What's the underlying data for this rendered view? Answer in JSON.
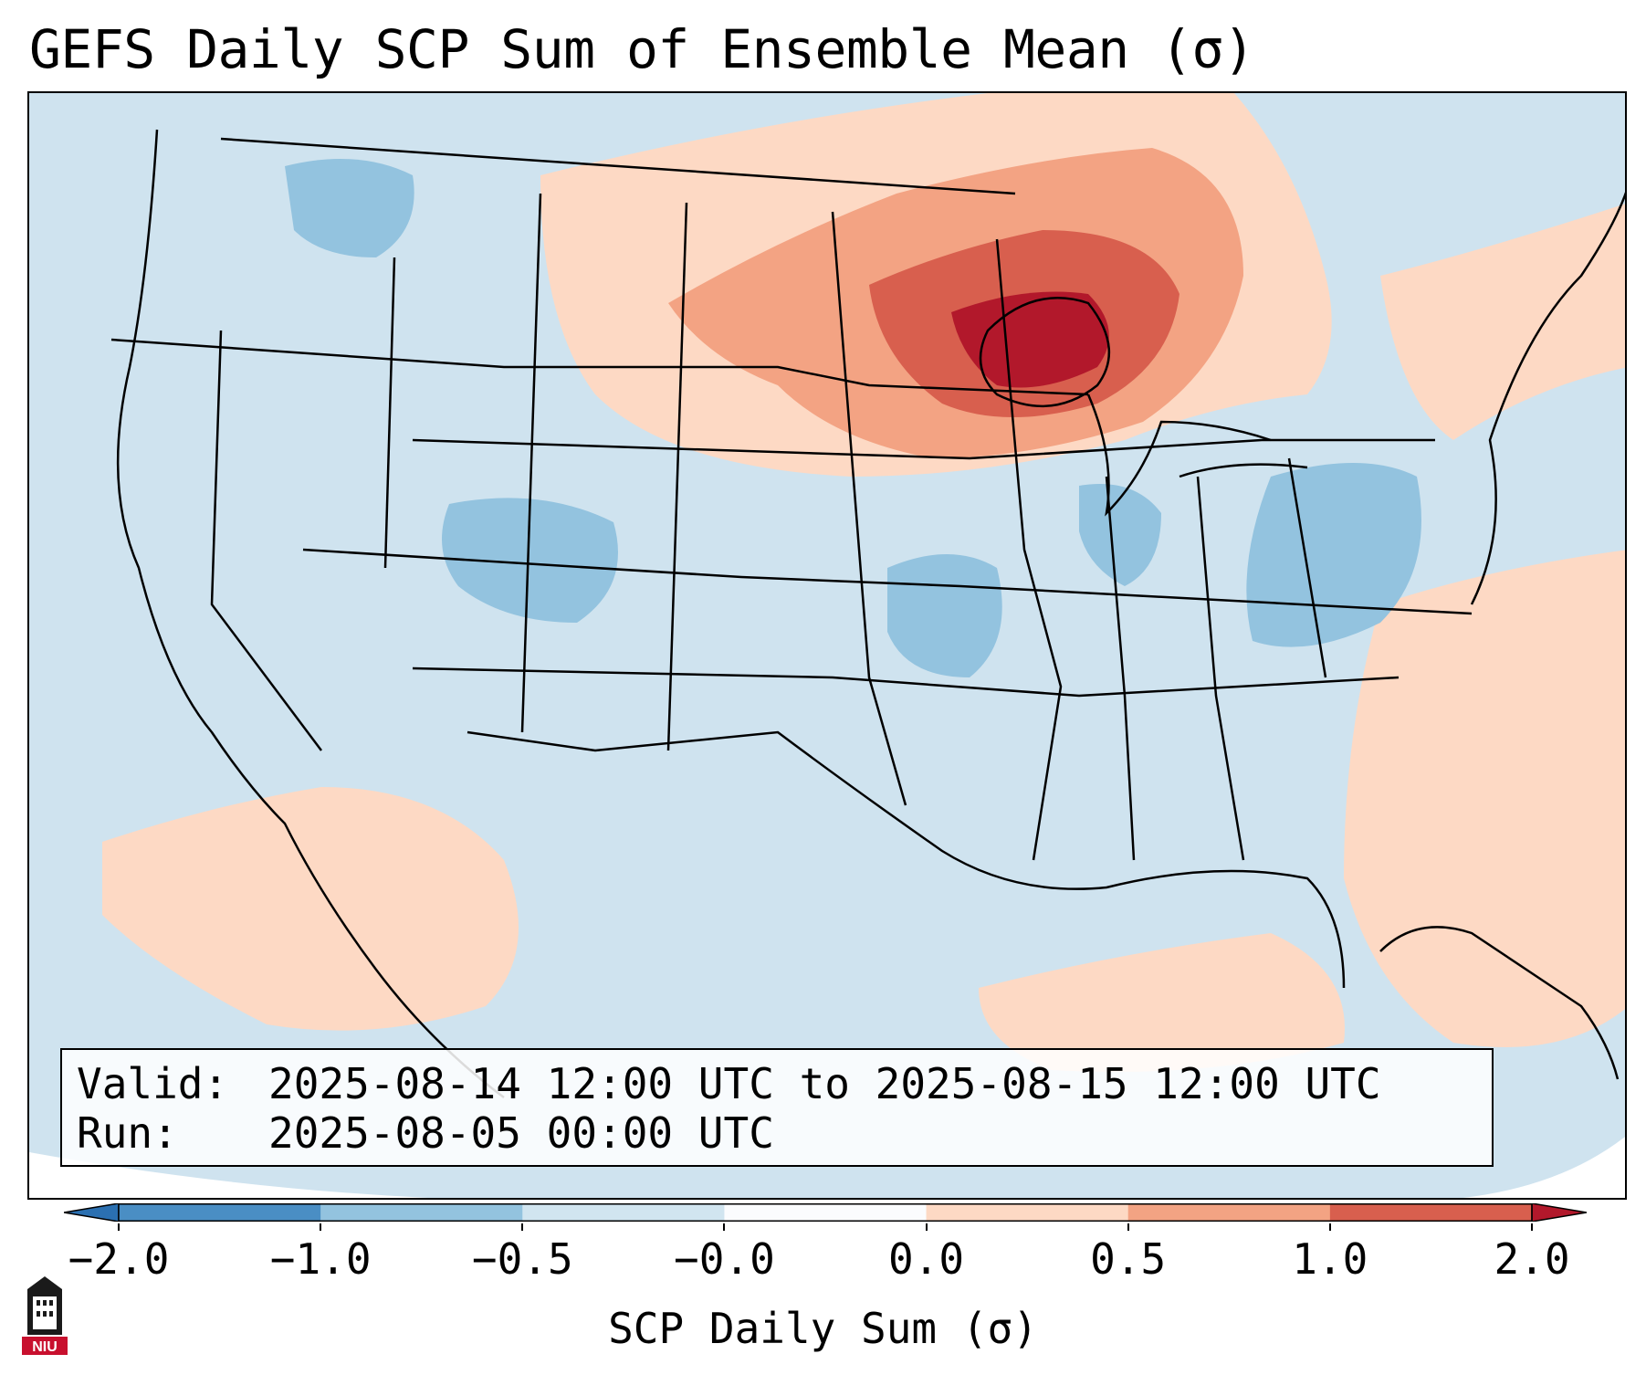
{
  "title": "GEFS Daily SCP Sum of Ensemble Mean (σ)",
  "infobox": {
    "valid_label": "Valid:",
    "valid_value": "2025-08-14 12:00 UTC to 2025-08-15 12:00 UTC",
    "run_label": "Run:",
    "run_value": "2025-08-05 00:00 UTC"
  },
  "colorbar": {
    "label": "SCP Daily Sum (σ)",
    "ticks": [
      "−2.0",
      "−1.0",
      "−0.5",
      "−0.0",
      "0.0",
      "0.5",
      "1.0",
      "2.0"
    ],
    "colors": [
      "#4a8ec4",
      "#93c3df",
      "#d1e5f0",
      "#fbfcfe",
      "#fdd9c4",
      "#f3a383",
      "#d85f4e"
    ],
    "extend_low": "#2b70b1",
    "extend_high": "#b2182b"
  },
  "map": {
    "background_value_color": "#d1e5f0",
    "region": "Contiguous United States"
  },
  "logo": {
    "text": "NIU",
    "icon": "niu-logo-icon"
  }
}
